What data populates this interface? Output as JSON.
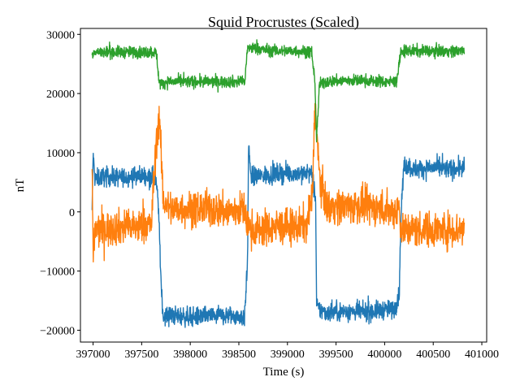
{
  "chart_data": {
    "type": "line",
    "title": "Squid Procrustes (Scaled)",
    "xlabel": "Time (s)",
    "ylabel": "nT",
    "xlim": [
      396870,
      401050
    ],
    "ylim": [
      -22000,
      31000
    ],
    "xticks": [
      397000,
      397500,
      398000,
      398500,
      399000,
      399500,
      400000,
      400500,
      401000
    ],
    "yticks": [
      -20000,
      -10000,
      0,
      10000,
      20000,
      30000
    ],
    "xtick_labels": [
      "397000",
      "397500",
      "398000",
      "398500",
      "399000",
      "399500",
      "400000",
      "400500",
      "401000"
    ],
    "ytick_labels": [
      "−20000",
      "−10000",
      "0",
      "10000",
      "20000",
      "30000"
    ],
    "grid": false,
    "series": [
      {
        "color": "#1f77b4",
        "noise": 800,
        "x": [
          396990,
          397000,
          397020,
          397100,
          397300,
          397500,
          397640,
          397670,
          397700,
          397720,
          397800,
          398000,
          398200,
          398400,
          398560,
          398590,
          398600,
          398620,
          398700,
          398900,
          399100,
          399250,
          399290,
          399300,
          399330,
          399400,
          399600,
          399800,
          400000,
          400100,
          400150,
          400170,
          400200,
          400300,
          400500,
          400700,
          400820
        ],
        "y": [
          -500,
          9500,
          5500,
          6000,
          5800,
          6200,
          5800,
          2000,
          -12000,
          -17500,
          -17500,
          -17800,
          -17600,
          -17500,
          -17800,
          -8000,
          12000,
          6000,
          6000,
          6500,
          6500,
          6500,
          2000,
          -16000,
          -16500,
          -17000,
          -16800,
          -17000,
          -16500,
          -16500,
          -14000,
          500,
          8000,
          7200,
          7500,
          7200,
          7500
        ]
      },
      {
        "color": "#ff7f0e",
        "noise": 1500,
        "x": [
          396990,
          397000,
          397020,
          397100,
          397300,
          397500,
          397600,
          397650,
          397680,
          397700,
          397720,
          397800,
          398000,
          398200,
          398400,
          398560,
          398590,
          398600,
          398620,
          398700,
          398900,
          399100,
          399200,
          399260,
          399280,
          399300,
          399330,
          399400,
          399600,
          399800,
          400000,
          400100,
          400150,
          400170,
          400200,
          400300,
          400500,
          400700,
          400820
        ],
        "y": [
          8000,
          -8000,
          -3000,
          -3000,
          -2500,
          -2500,
          -2000,
          12000,
          16000,
          10000,
          2000,
          500,
          500,
          500,
          0,
          500,
          -3000,
          -2000,
          -3000,
          -3000,
          -2500,
          -2500,
          -2000,
          3000,
          18000,
          14000,
          6000,
          1000,
          1000,
          1000,
          500,
          0,
          1000,
          -3000,
          -3000,
          -3000,
          -3000,
          -3000,
          -3000
        ]
      },
      {
        "color": "#2ca02c",
        "noise": 500,
        "x": [
          396990,
          397000,
          397100,
          397300,
          397500,
          397650,
          397680,
          397700,
          397750,
          398000,
          398200,
          398400,
          398560,
          398590,
          398600,
          398700,
          398900,
          399100,
          399250,
          399280,
          399300,
          399330,
          399400,
          399600,
          399800,
          400000,
          400120,
          400170,
          400200,
          400300,
          400500,
          400700,
          400820
        ],
        "y": [
          26500,
          27000,
          27000,
          27000,
          27000,
          27000,
          22000,
          21500,
          22000,
          22000,
          22000,
          22000,
          22000,
          27500,
          27800,
          27500,
          27200,
          27200,
          27000,
          22500,
          12500,
          21500,
          22000,
          22200,
          22200,
          22000,
          22000,
          27000,
          27200,
          27200,
          27200,
          27200,
          27200
        ]
      }
    ]
  }
}
